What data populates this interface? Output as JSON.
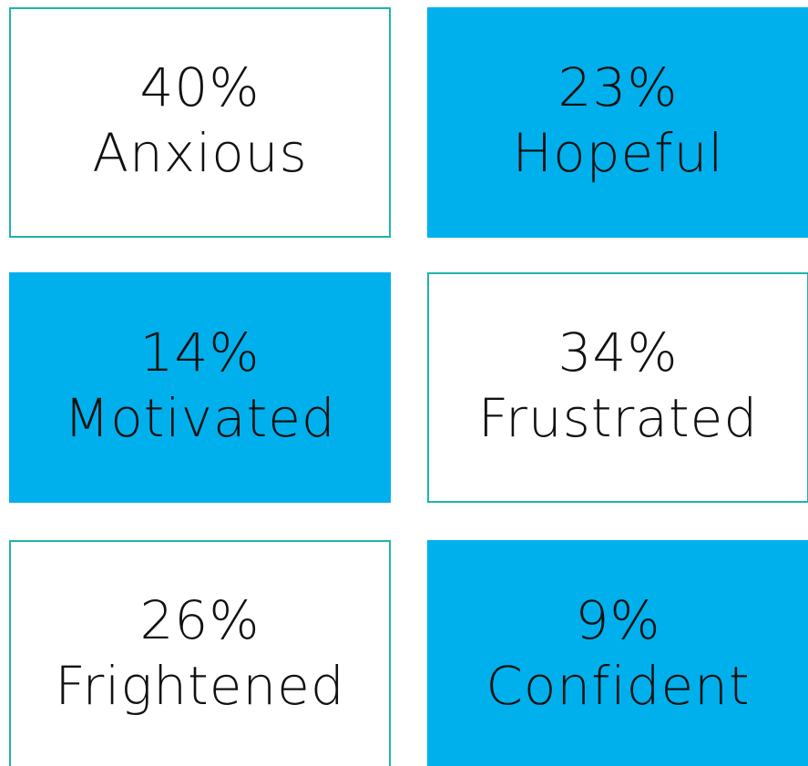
{
  "tiles": [
    {
      "value": "40%",
      "label": "Anxious",
      "highlighted": false
    },
    {
      "value": "23%",
      "label": "Hopeful",
      "highlighted": true
    },
    {
      "value": "14%",
      "label": "Motivated",
      "highlighted": true
    },
    {
      "value": "34%",
      "label": "Frustrated",
      "highlighted": false
    },
    {
      "value": "26%",
      "label": "Frightened",
      "highlighted": false
    },
    {
      "value": "9%",
      "label": "Confident",
      "highlighted": true
    }
  ]
}
